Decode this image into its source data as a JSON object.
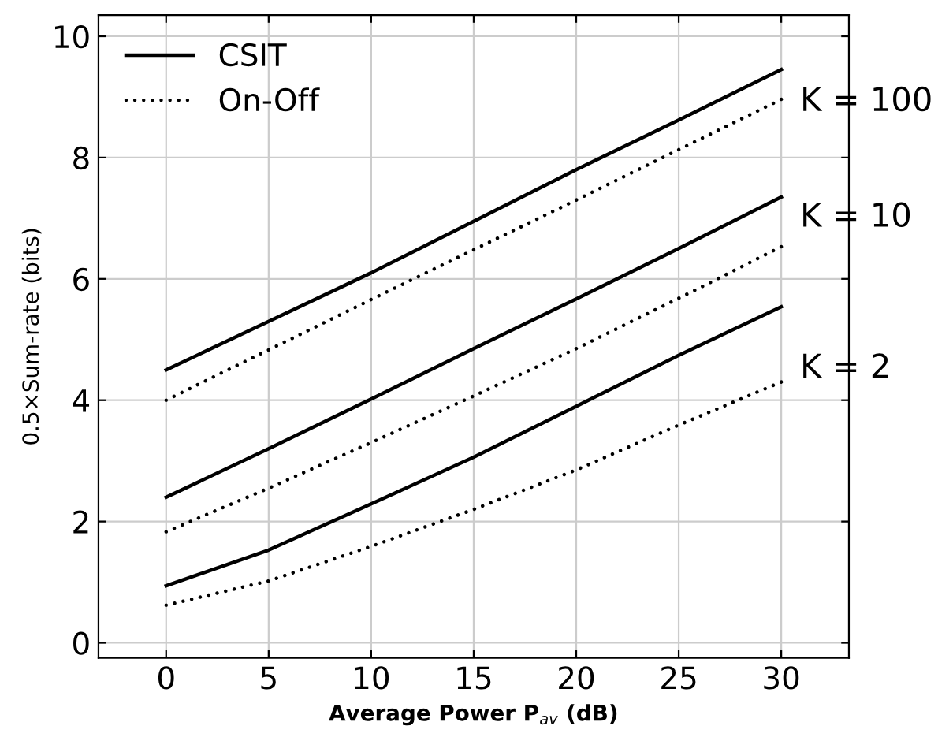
{
  "chart_data": {
    "type": "line",
    "xlabel": "Average Power P$_{av}$ (dB)",
    "ylabel": "0.5×Sum-rate (bits)",
    "x": [
      0,
      5,
      10,
      15,
      20,
      25,
      30
    ],
    "xlim": [
      -3.3,
      33.3
    ],
    "ylim": [
      -0.25,
      10.35
    ],
    "xticks": [
      0,
      5,
      10,
      15,
      20,
      25,
      30
    ],
    "yticks": [
      0,
      2,
      4,
      6,
      8,
      10
    ],
    "grid": true,
    "legend": "top left",
    "marker": "none",
    "series": [
      {
        "name": "CSIT",
        "color": "#000000",
        "line_style": "solid",
        "values": [
          4.5,
          5.3,
          6.1,
          6.95,
          7.8,
          8.62,
          9.45
        ]
      },
      {
        "name": "On-Off",
        "color": "#000000",
        "line_style": "dotted",
        "values": [
          4.0,
          4.83,
          5.66,
          6.48,
          7.3,
          8.13,
          8.96
        ]
      },
      {
        "color": "#000000",
        "line_style": "solid",
        "values": [
          2.4,
          3.2,
          4.02,
          4.85,
          5.67,
          6.5,
          7.35
        ]
      },
      {
        "color": "#000000",
        "line_style": "dotted",
        "values": [
          1.83,
          2.55,
          3.3,
          4.07,
          4.85,
          5.68,
          6.53
        ]
      },
      {
        "color": "#000000",
        "line_style": "solid",
        "values": [
          0.94,
          1.53,
          2.29,
          3.06,
          3.9,
          4.74,
          5.54
        ]
      },
      {
        "color": "#000000",
        "line_style": "dotted",
        "values": [
          0.62,
          1.02,
          1.59,
          2.2,
          2.85,
          3.59,
          4.3
        ]
      }
    ],
    "annotations": [
      "K = 100",
      "K = 10",
      "K = 2"
    ]
  }
}
